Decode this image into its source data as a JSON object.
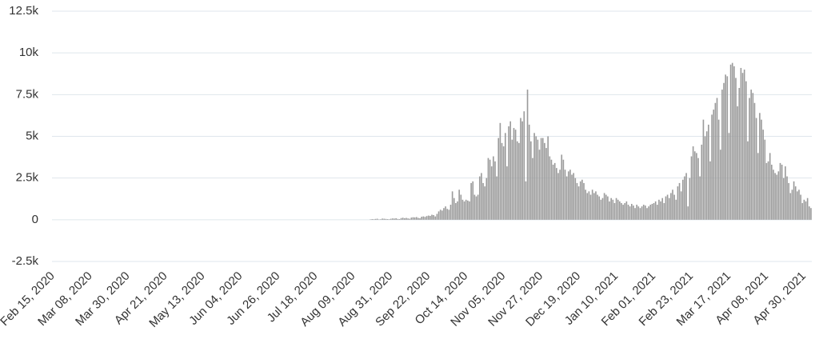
{
  "chart_data": {
    "type": "bar",
    "color": "#9a9a9a",
    "grid": true,
    "ylim": [
      -2500,
      12500
    ],
    "yticks": [
      {
        "value": -2500,
        "label": "-2.5k"
      },
      0,
      {
        "value": 2500,
        "label": "2.5k"
      },
      {
        "value": 5000,
        "label": "5k"
      },
      {
        "value": 7500,
        "label": "7.5k"
      },
      {
        "value": 10000,
        "label": "10k"
      },
      {
        "value": 12500,
        "label": "12.5k"
      }
    ],
    "categories": [
      "Feb 15, 2020",
      null,
      null,
      null,
      null,
      null,
      null,
      null,
      null,
      null,
      null,
      null,
      null,
      null,
      null,
      null,
      null,
      null,
      null,
      null,
      null,
      null,
      "Mar 08, 2020",
      null,
      null,
      null,
      null,
      null,
      null,
      null,
      null,
      null,
      null,
      null,
      null,
      null,
      null,
      null,
      null,
      null,
      null,
      null,
      null,
      null,
      "Mar 30, 2020",
      null,
      null,
      null,
      null,
      null,
      null,
      null,
      null,
      null,
      null,
      null,
      null,
      null,
      null,
      null,
      null,
      null,
      null,
      null,
      null,
      null,
      "Apr 21, 2020",
      null,
      null,
      null,
      null,
      null,
      null,
      null,
      null,
      null,
      null,
      null,
      null,
      null,
      null,
      null,
      null,
      null,
      null,
      null,
      null,
      null,
      "May 13, 2020",
      null,
      null,
      null,
      null,
      null,
      null,
      null,
      null,
      null,
      null,
      null,
      null,
      null,
      null,
      null,
      null,
      null,
      null,
      null,
      null,
      null,
      "Jun 04, 2020",
      null,
      null,
      null,
      null,
      null,
      null,
      null,
      null,
      null,
      null,
      null,
      null,
      null,
      null,
      null,
      null,
      null,
      null,
      null,
      null,
      null,
      "Jun 26, 2020",
      null,
      null,
      null,
      null,
      null,
      null,
      null,
      null,
      null,
      null,
      null,
      null,
      null,
      null,
      null,
      null,
      null,
      null,
      null,
      null,
      null,
      "Jul 18, 2020",
      null,
      null,
      null,
      null,
      null,
      null,
      null,
      null,
      null,
      null,
      null,
      null,
      null,
      null,
      null,
      null,
      null,
      null,
      null,
      null,
      null,
      "Aug 09, 2020",
      null,
      null,
      null,
      null,
      null,
      null,
      null,
      null,
      null,
      null,
      null,
      null,
      null,
      null,
      null,
      null,
      null,
      null,
      null,
      null,
      null,
      "Aug 31, 2020",
      null,
      null,
      null,
      null,
      null,
      null,
      null,
      null,
      null,
      null,
      null,
      null,
      null,
      null,
      null,
      null,
      null,
      null,
      null,
      null,
      null,
      "Sep 22, 2020",
      null,
      null,
      null,
      null,
      null,
      null,
      null,
      null,
      null,
      null,
      null,
      null,
      null,
      null,
      null,
      null,
      null,
      null,
      null,
      null,
      null,
      "Oct 14, 2020",
      null,
      null,
      null,
      null,
      null,
      null,
      null,
      null,
      null,
      null,
      null,
      null,
      null,
      null,
      null,
      null,
      null,
      null,
      null,
      null,
      null,
      "Nov 05, 2020",
      null,
      null,
      null,
      null,
      null,
      null,
      null,
      null,
      null,
      null,
      null,
      null,
      null,
      null,
      null,
      null,
      null,
      null,
      null,
      null,
      null,
      "Nov 27, 2020",
      null,
      null,
      null,
      null,
      null,
      null,
      null,
      null,
      null,
      null,
      null,
      null,
      null,
      null,
      null,
      null,
      null,
      null,
      null,
      null,
      null,
      "Dec 19, 2020",
      null,
      null,
      null,
      null,
      null,
      null,
      null,
      null,
      null,
      null,
      null,
      null,
      null,
      null,
      null,
      null,
      null,
      null,
      null,
      null,
      null,
      "Jan 10, 2021",
      null,
      null,
      null,
      null,
      null,
      null,
      null,
      null,
      null,
      null,
      null,
      null,
      null,
      null,
      null,
      null,
      null,
      null,
      null,
      null,
      null,
      "Feb 01, 2021",
      null,
      null,
      null,
      null,
      null,
      null,
      null,
      null,
      null,
      null,
      null,
      null,
      null,
      null,
      null,
      null,
      null,
      null,
      null,
      null,
      null,
      "Feb 23, 2021",
      null,
      null,
      null,
      null,
      null,
      null,
      null,
      null,
      null,
      null,
      null,
      null,
      null,
      null,
      null,
      null,
      null,
      null,
      null,
      null,
      null,
      "Mar 17, 2021",
      null,
      null,
      null,
      null,
      null,
      null,
      null,
      null,
      null,
      null,
      null,
      null,
      null,
      null,
      null,
      null,
      null,
      null,
      null,
      null,
      null,
      "Apr 08, 2021",
      null,
      null,
      null,
      null,
      null,
      null,
      null,
      null,
      null,
      null,
      null,
      null,
      null,
      null,
      null,
      null,
      null,
      null,
      null,
      null,
      null,
      "Apr 30, 2021",
      null,
      null,
      null,
      null
    ],
    "values": [
      0,
      0,
      0,
      0,
      0,
      0,
      0,
      0,
      0,
      0,
      0,
      0,
      0,
      0,
      0,
      0,
      0,
      0,
      0,
      0,
      0,
      0,
      0,
      0,
      0,
      0,
      0,
      0,
      0,
      0,
      0,
      0,
      0,
      0,
      0,
      0,
      0,
      0,
      0,
      0,
      0,
      0,
      0,
      0,
      0,
      0,
      0,
      0,
      0,
      0,
      0,
      0,
      0,
      0,
      0,
      0,
      0,
      0,
      0,
      0,
      0,
      0,
      0,
      0,
      0,
      0,
      0,
      0,
      0,
      0,
      0,
      0,
      0,
      0,
      0,
      0,
      0,
      0,
      0,
      0,
      0,
      0,
      0,
      0,
      0,
      0,
      0,
      0,
      0,
      0,
      0,
      0,
      0,
      0,
      0,
      0,
      0,
      0,
      0,
      0,
      0,
      0,
      0,
      0,
      0,
      0,
      0,
      0,
      0,
      0,
      0,
      0,
      0,
      0,
      0,
      0,
      0,
      0,
      0,
      0,
      0,
      0,
      0,
      0,
      0,
      0,
      0,
      0,
      0,
      0,
      0,
      0,
      0,
      0,
      0,
      0,
      0,
      0,
      0,
      0,
      0,
      0,
      0,
      0,
      0,
      0,
      0,
      0,
      0,
      0,
      0,
      0,
      0,
      0,
      0,
      0,
      0,
      0,
      0,
      0,
      0,
      0,
      0,
      0,
      0,
      0,
      0,
      0,
      0,
      0,
      0,
      0,
      0,
      0,
      0,
      0,
      0,
      0,
      0,
      0,
      0,
      0,
      0,
      0,
      0,
      0,
      20,
      40,
      30,
      50,
      60,
      20,
      30,
      70,
      60,
      50,
      40,
      30,
      60,
      80,
      70,
      90,
      50,
      40,
      100,
      120,
      90,
      110,
      80,
      60,
      130,
      150,
      140,
      160,
      110,
      90,
      180,
      200,
      170,
      220,
      250,
      230,
      300,
      280,
      200,
      350,
      500,
      600,
      550,
      700,
      800,
      650,
      600,
      900,
      1700,
      1300,
      1000,
      1100,
      1800,
      1500,
      1200,
      1100,
      1200,
      1150,
      1100,
      2200,
      2300,
      1500,
      1400,
      1500,
      2600,
      2800,
      2200,
      2000,
      2500,
      3700,
      3600,
      3200,
      3800,
      3500,
      2600,
      4900,
      5800,
      4600,
      4400,
      5200,
      3200,
      5600,
      5900,
      4800,
      5500,
      5400,
      4700,
      4600,
      6100,
      5900,
      6500,
      2300,
      7800,
      5700,
      4700,
      3700,
      5200,
      5000,
      4800,
      4200,
      4900,
      4900,
      4600,
      4300,
      5000,
      3800,
      3600,
      3300,
      3400,
      3100,
      2800,
      3000,
      3900,
      3600,
      3000,
      2600,
      2900,
      3000,
      2700,
      2800,
      2500,
      2200,
      2000,
      2300,
      2400,
      2200,
      1800,
      1600,
      1700,
      1500,
      1800,
      1600,
      1700,
      1500,
      1400,
      1200,
      1300,
      1600,
      1500,
      1400,
      1100,
      1300,
      1200,
      1000,
      1300,
      1200,
      1100,
      1000,
      900,
      1000,
      1100,
      900,
      800,
      950,
      850,
      700,
      900,
      800,
      700,
      800,
      900,
      850,
      700,
      800,
      900,
      950,
      1000,
      1100,
      900,
      1200,
      1100,
      1300,
      1000,
      1400,
      1500,
      1300,
      1600,
      1800,
      1500,
      1200,
      2000,
      2200,
      1700,
      2400,
      2600,
      2800,
      800,
      2500,
      3800,
      4400,
      4100,
      4000,
      3700,
      2600,
      4500,
      6000,
      5000,
      5300,
      5700,
      3500,
      6300,
      6600,
      7000,
      7300,
      6000,
      4200,
      7800,
      8200,
      8700,
      8600,
      5200,
      9300,
      9400,
      9200,
      8500,
      6800,
      7900,
      9100,
      8800,
      9000,
      8300,
      4700,
      7300,
      7800,
      7600,
      7000,
      6100,
      4000,
      6400,
      6000,
      5400,
      4800,
      3400,
      3500,
      4000,
      3300,
      3000,
      2800,
      2700,
      2900,
      3400,
      3300,
      2500,
      3200,
      2600,
      2200,
      1600,
      1800,
      2300,
      2000,
      1700,
      1800,
      1500,
      1000,
      1200,
      1100,
      1300,
      800,
      700
    ]
  }
}
